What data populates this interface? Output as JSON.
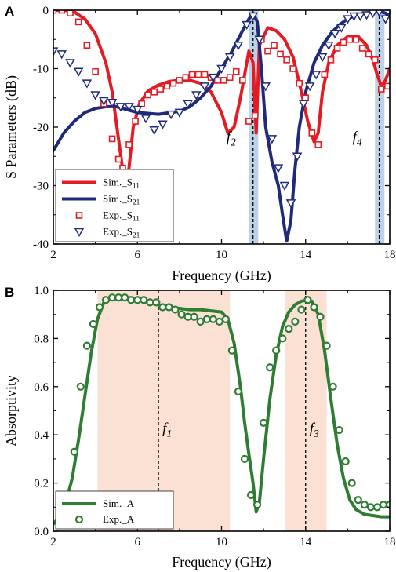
{
  "chart_data": [
    {
      "panel": "A",
      "type": "line",
      "xlabel": "Frequency (GHz)",
      "ylabel": "S Parameters (dB)",
      "xlim": [
        2,
        18
      ],
      "ylim": [
        -40,
        0
      ],
      "xticks": [
        2,
        6,
        10,
        14,
        18
      ],
      "yticks": [
        0,
        -10,
        -20,
        -30,
        -40
      ],
      "grid": false,
      "legend": "bottom-left",
      "markers": [
        {
          "label": "f",
          "sub": "2",
          "x": 11.5,
          "band": [
            11.3,
            11.75
          ]
        },
        {
          "label": "f",
          "sub": "4",
          "x": 17.5,
          "band": [
            17.3,
            17.75
          ]
        }
      ],
      "series": [
        {
          "name": "Sim._S",
          "sub": "11",
          "kind": "line",
          "color": "#e31b23",
          "x": [
            2,
            2.5,
            3,
            3.5,
            4,
            4.5,
            4.8,
            5.1,
            5.4,
            5.6,
            5.8,
            6.1,
            6.5,
            7,
            7.5,
            8,
            8.5,
            9,
            9.5,
            10,
            10.3,
            10.6,
            10.9,
            11.1,
            11.3,
            11.5,
            11.65,
            11.8,
            12.2,
            12.6,
            13,
            13.4,
            13.8,
            14.1,
            14.4,
            14.6,
            14.8,
            15.1,
            15.5,
            16,
            16.5,
            16.9,
            17.2,
            17.4,
            17.6,
            17.8,
            18
          ],
          "y": [
            0,
            0,
            -0.3,
            -1.5,
            -4,
            -9,
            -14,
            -22,
            -30,
            -27,
            -20,
            -16,
            -13.8,
            -12.8,
            -12.2,
            -12,
            -12,
            -12.5,
            -14,
            -17.5,
            -21,
            -20,
            -15,
            -11,
            -7,
            -9,
            -21,
            -6,
            -3,
            -3.5,
            -5,
            -8,
            -14,
            -19,
            -22.5,
            -21,
            -14,
            -9,
            -6,
            -4.5,
            -4.5,
            -6,
            -8.5,
            -11,
            -13,
            -12,
            -10
          ]
        },
        {
          "name": "Sim._S",
          "sub": "21",
          "kind": "line",
          "color": "#1f2a7a",
          "x": [
            2,
            2.5,
            3,
            3.5,
            4,
            4.5,
            5,
            5.5,
            6,
            7,
            8,
            8.5,
            9,
            9.5,
            10,
            10.5,
            11,
            11.3,
            11.5,
            11.7,
            11.9,
            12.1,
            12.4,
            12.7,
            12.9,
            13.1,
            13.3,
            13.5,
            13.7,
            14,
            14.4,
            14.8,
            15.2,
            15.6,
            16,
            16.4,
            16.8,
            17.2,
            17.5,
            17.8,
            18
          ],
          "y": [
            -24,
            -21,
            -19,
            -17.5,
            -16.8,
            -16.5,
            -16.5,
            -17,
            -17.5,
            -17.8,
            -17.3,
            -16.5,
            -15,
            -13,
            -10,
            -7,
            -3.5,
            -1.5,
            -0.5,
            -2,
            -10,
            -20,
            -26,
            -30,
            -35,
            -39.5,
            -36,
            -27,
            -20,
            -14,
            -9,
            -6,
            -4,
            -2.5,
            -1.5,
            -0.8,
            -0.5,
            -0.3,
            -0.2,
            -0.5,
            -1
          ]
        },
        {
          "name": "Exp._S",
          "sub": "11",
          "kind": "square",
          "color": "#e31b23",
          "x": [
            2,
            2.4,
            2.8,
            3.2,
            3.6,
            4,
            4.4,
            4.8,
            5.1,
            5.3,
            5.6,
            5.9,
            6.2,
            6.5,
            6.8,
            7.1,
            7.4,
            7.7,
            8,
            8.3,
            8.6,
            8.9,
            9.2,
            9.5,
            9.8,
            10.1,
            10.4,
            10.7,
            11,
            11.3,
            11.6,
            11.9,
            12.2,
            12.5,
            12.8,
            13.1,
            13.4,
            13.7,
            14,
            14.3,
            14.6,
            14.9,
            15.2,
            15.5,
            15.8,
            16.1,
            16.4,
            16.7,
            17,
            17.3,
            17.6,
            17.9
          ],
          "y": [
            0,
            0,
            -0.5,
            -2,
            -6,
            -10.5,
            -16,
            -22,
            -25.5,
            -27,
            -23,
            -19,
            -16,
            -14.5,
            -14,
            -13.5,
            -13,
            -12.5,
            -12,
            -11.5,
            -11,
            -11,
            -11,
            -11.5,
            -12,
            -12,
            -11.5,
            -10.5,
            -12,
            -19,
            -18,
            -5,
            -7,
            -6,
            -7.5,
            -8.5,
            -10,
            -12.5,
            -15,
            -21,
            -23,
            -11,
            -8.5,
            -6.5,
            -5.5,
            -5,
            -5,
            -6.5,
            -7.5,
            -8.5,
            -13.5,
            -13
          ]
        },
        {
          "name": "Exp._S",
          "sub": "21",
          "kind": "triangle",
          "color": "#1f2a7a",
          "x": [
            2,
            2.4,
            2.8,
            3.2,
            3.6,
            4,
            4.4,
            4.8,
            5.2,
            5.6,
            6,
            6.4,
            6.8,
            7.2,
            7.6,
            8,
            8.4,
            8.8,
            9.2,
            9.6,
            10,
            10.4,
            10.8,
            11.2,
            11.5,
            11.8,
            12.1,
            12.4,
            12.7,
            13,
            13.3,
            13.6,
            13.9,
            14.2,
            14.5,
            14.8,
            15.1,
            15.4,
            15.7,
            16,
            16.3,
            16.6,
            16.9,
            17.2,
            17.5,
            17.8
          ],
          "y": [
            -7,
            -7.5,
            -9,
            -10.5,
            -12.5,
            -14.5,
            -15.5,
            -15.8,
            -16.5,
            -16.5,
            -17,
            -18.5,
            -20.5,
            -19.5,
            -17.8,
            -17.5,
            -16,
            -14.5,
            -13,
            -11.5,
            -10,
            -8,
            -6,
            -2.5,
            -1,
            -5,
            -13,
            -22,
            -27,
            -30,
            -33,
            -25,
            -16,
            -13,
            -11,
            -8,
            -6,
            -4,
            -3,
            -1.5,
            -1,
            -1,
            -0.8,
            -0.5,
            -0.3,
            -1.5
          ]
        }
      ]
    },
    {
      "panel": "B",
      "type": "line",
      "xlabel": "Frequency (GHz)",
      "ylabel": "Absorptivity",
      "xlim": [
        2,
        18
      ],
      "ylim": [
        0,
        1.0
      ],
      "xticks": [
        2,
        6,
        10,
        14,
        18
      ],
      "yticks": [
        0.0,
        0.2,
        0.4,
        0.6,
        0.8,
        1.0
      ],
      "grid": false,
      "legend": "bottom-left",
      "markers": [
        {
          "label": "f",
          "sub": "1",
          "x": 7,
          "band": [
            4.1,
            10.4
          ]
        },
        {
          "label": "f",
          "sub": "3",
          "x": 14,
          "band": [
            13.0,
            15.0
          ]
        }
      ],
      "series": [
        {
          "name": "Sim._A",
          "kind": "line",
          "color": "#2e7d32",
          "x": [
            2,
            2.3,
            2.6,
            2.9,
            3.2,
            3.5,
            3.8,
            4.1,
            4.4,
            4.7,
            5,
            5.5,
            6,
            6.5,
            7,
            7.5,
            8,
            8.5,
            9,
            9.5,
            10,
            10.3,
            10.6,
            10.9,
            11.1,
            11.3,
            11.5,
            11.65,
            11.8,
            12,
            12.3,
            12.6,
            12.9,
            13.2,
            13.5,
            13.8,
            14.1,
            14.3,
            14.6,
            14.9,
            15.2,
            15.5,
            15.8,
            16.1,
            16.4,
            16.8,
            17.2,
            17.6,
            18
          ],
          "y": [
            0.03,
            0.06,
            0.12,
            0.22,
            0.38,
            0.56,
            0.74,
            0.88,
            0.95,
            0.97,
            0.975,
            0.97,
            0.96,
            0.95,
            0.94,
            0.93,
            0.925,
            0.92,
            0.92,
            0.915,
            0.91,
            0.88,
            0.78,
            0.6,
            0.45,
            0.32,
            0.2,
            0.08,
            0.12,
            0.3,
            0.55,
            0.73,
            0.85,
            0.91,
            0.94,
            0.955,
            0.96,
            0.955,
            0.9,
            0.75,
            0.55,
            0.36,
            0.22,
            0.13,
            0.09,
            0.07,
            0.065,
            0.06,
            0.06
          ]
        },
        {
          "name": "Exp._A",
          "kind": "circle",
          "color": "#2e7d32",
          "x": [
            3,
            3.3,
            3.6,
            3.9,
            4.2,
            4.5,
            4.8,
            5.1,
            5.4,
            5.7,
            6,
            6.3,
            6.6,
            6.9,
            7.2,
            7.5,
            7.8,
            8.1,
            8.4,
            8.7,
            9,
            9.3,
            9.6,
            9.9,
            10.2,
            10.5,
            10.8,
            11.1,
            11.4,
            11.7,
            12,
            12.3,
            12.6,
            12.9,
            13.2,
            13.5,
            13.8,
            14.1,
            14.4,
            14.7,
            15,
            15.3,
            15.6,
            15.9,
            16.2,
            16.5,
            16.8,
            17.1,
            17.4,
            17.7,
            18
          ],
          "y": [
            0.33,
            0.6,
            0.77,
            0.86,
            0.93,
            0.96,
            0.97,
            0.97,
            0.97,
            0.96,
            0.96,
            0.96,
            0.95,
            0.95,
            0.93,
            0.93,
            0.92,
            0.9,
            0.89,
            0.89,
            0.87,
            0.88,
            0.88,
            0.87,
            0.88,
            0.75,
            0.58,
            0.3,
            0.15,
            0.11,
            0.45,
            0.68,
            0.75,
            0.8,
            0.84,
            0.87,
            0.92,
            0.96,
            0.93,
            0.89,
            0.77,
            0.6,
            0.42,
            0.29,
            0.2,
            0.13,
            0.11,
            0.1,
            0.1,
            0.11,
            0.11
          ]
        }
      ]
    }
  ]
}
